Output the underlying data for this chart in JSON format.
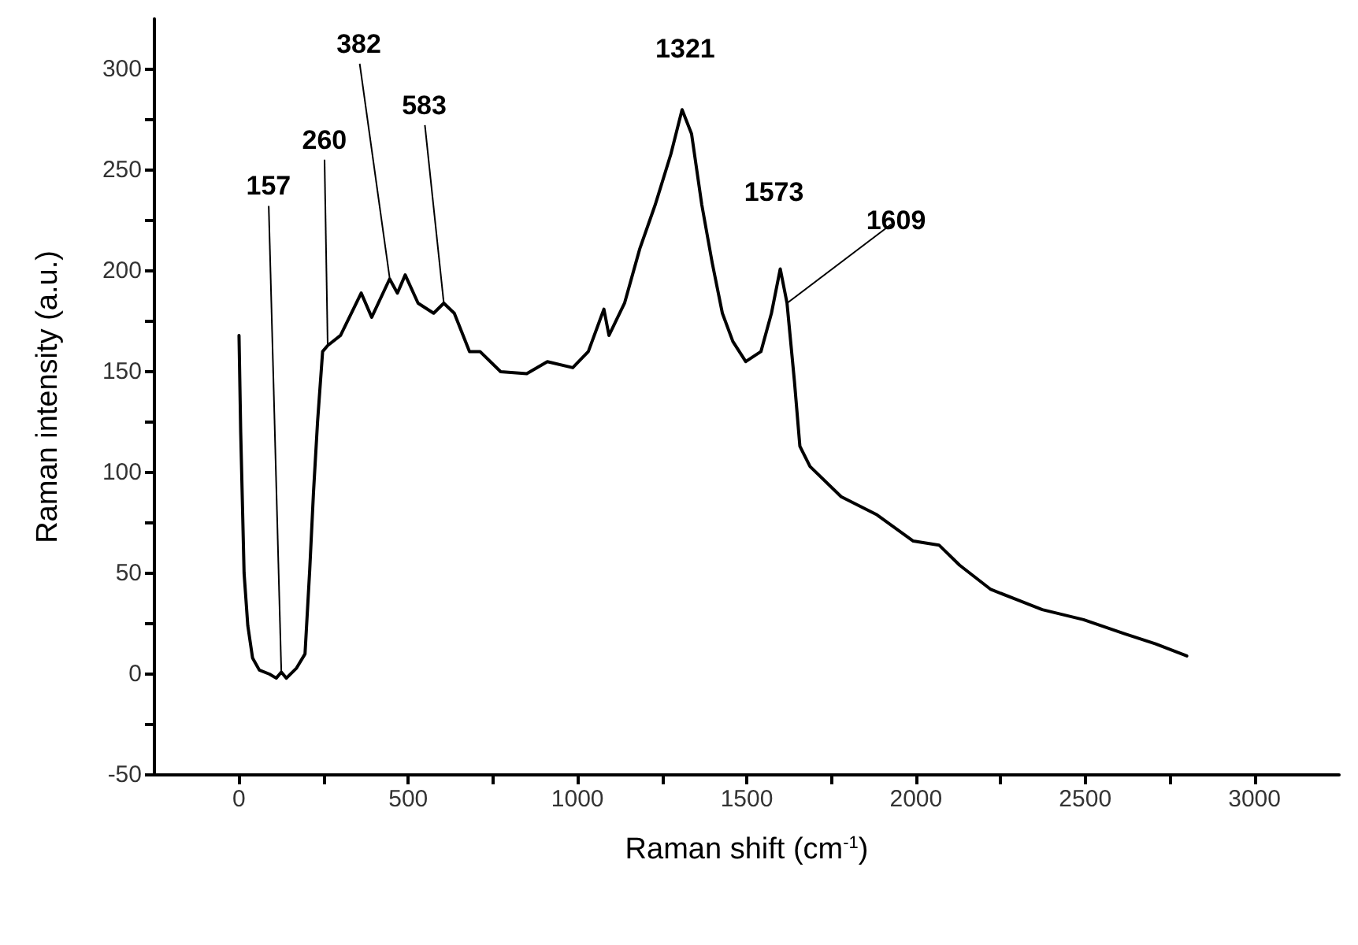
{
  "chart_data": {
    "type": "line",
    "xlabel": "Raman shift (cm$^{-1}$)",
    "ylabel": "Raman intensity (a.u.)",
    "xlim": [
      -250,
      3250
    ],
    "xticks": [
      0,
      {
        "value": 250,
        "label": null
      },
      500,
      {
        "value": 750,
        "label": null
      },
      1000,
      {
        "value": 1250,
        "label": null
      },
      1500,
      {
        "value": 1750,
        "label": null
      },
      2000,
      {
        "value": 2250,
        "label": null
      },
      2500,
      {
        "value": 2750,
        "label": null
      },
      3000
    ],
    "ylim": [
      -50,
      325
    ],
    "yticks": [
      -50,
      {
        "value": -25,
        "label": null
      },
      0,
      {
        "value": 25,
        "label": null
      },
      50,
      {
        "value": 75,
        "label": null
      },
      100,
      {
        "value": 125,
        "label": null
      },
      150,
      {
        "value": 175,
        "label": null
      },
      200,
      {
        "value": 225,
        "label": null
      },
      250,
      {
        "value": 275,
        "label": null
      },
      300
    ],
    "grid": false,
    "marker": "none",
    "line_style": "solid",
    "series": [
      {
        "color": "#000000",
        "x": [
          0,
          5,
          15,
          26,
          40,
          60,
          90,
          110,
          125,
          140,
          170,
          195,
          209,
          220,
          232,
          247,
          262,
          300,
          361,
          392,
          445,
          468,
          491,
          529,
          575,
          605,
          636,
          681,
          712,
          773,
          850,
          911,
          986,
          1032,
          1078,
          1093,
          1139,
          1184,
          1230,
          1276,
          1309,
          1337,
          1367,
          1398,
          1428,
          1459,
          1497,
          1542,
          1573,
          1599,
          1619,
          1641,
          1657,
          1687,
          1779,
          1885,
          1992,
          2068,
          2129,
          2221,
          2373,
          2495,
          2617,
          2708,
          2800
        ],
        "values": [
          168,
          120,
          50,
          24,
          8,
          2,
          0,
          -2,
          1,
          -2,
          3,
          10,
          52,
          90,
          125,
          160,
          163,
          168,
          189,
          177,
          196,
          189,
          198,
          184,
          179,
          184,
          179,
          160,
          160,
          150,
          149,
          155,
          152,
          160,
          181,
          168,
          184,
          211,
          233,
          258,
          280,
          268,
          233,
          204,
          179,
          165,
          155,
          160,
          179,
          201,
          184,
          145,
          113,
          103,
          88,
          79,
          66,
          64,
          54,
          42,
          32,
          27,
          20,
          15,
          9
        ]
      }
    ],
    "annotations": [
      {
        "text": "157",
        "x": 125,
        "y": 1
      },
      {
        "text": "260",
        "x": 262,
        "y": 163
      },
      {
        "text": "382",
        "x": 445,
        "y": 196.5
      },
      {
        "text": "583",
        "x": 605,
        "y": 184
      },
      {
        "text": "1321",
        "x": 1309,
        "y": 280
      },
      {
        "text": "1573",
        "x": 1599,
        "y": 201
      },
      {
        "text": "1609",
        "x": 1619,
        "y": 184
      }
    ]
  }
}
